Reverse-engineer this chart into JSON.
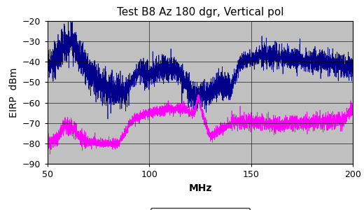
{
  "title": "Test B8 Az 180 dgr, Vertical pol",
  "xlabel": "MHz",
  "ylabel": "EIRP  dBm",
  "xlim": [
    50,
    200
  ],
  "ylim": [
    -90,
    -20
  ],
  "yticks": [
    -90,
    -80,
    -70,
    -60,
    -50,
    -40,
    -30,
    -20
  ],
  "xticks": [
    50,
    100,
    150,
    200
  ],
  "bg_color": "#c0c0c0",
  "peak_color": "#00008B",
  "rms_color": "#FF00FF",
  "grid_color": "#000000",
  "title_fontsize": 11,
  "label_fontsize": 10,
  "tick_fontsize": 9
}
